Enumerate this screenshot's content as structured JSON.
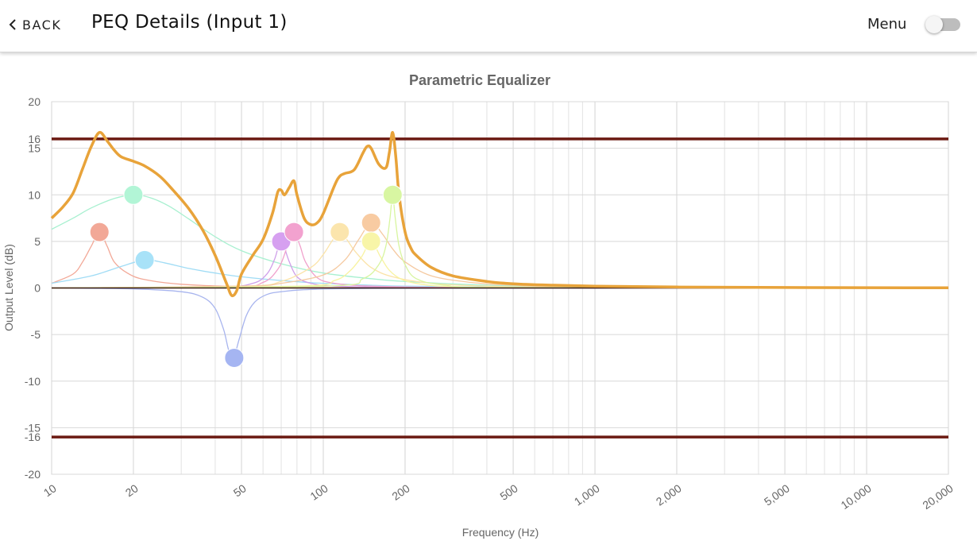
{
  "header": {
    "back_label": "BACK",
    "title": "PEQ Details (Input 1)",
    "menu_label": "Menu",
    "menu_toggle_on": false
  },
  "chart_data": {
    "type": "line",
    "title": "Parametric Equalizer",
    "xlabel": "Frequency (Hz)",
    "ylabel": "Output Level (dB)",
    "xscale": "log",
    "xlim": [
      10,
      20000
    ],
    "ylim": [
      -20,
      20
    ],
    "x_ticks": [
      10,
      20,
      50,
      100,
      200,
      500,
      1000,
      2000,
      5000,
      10000,
      20000
    ],
    "x_tick_labels": [
      "10",
      "20",
      "50",
      "100",
      "200",
      "500",
      "1,000",
      "2,000",
      "5,000",
      "10,000",
      "20,000"
    ],
    "y_ticks": [
      -20,
      -15,
      -10,
      -5,
      0,
      5,
      10,
      15,
      20
    ],
    "y_tick_labels": [
      "-20",
      "-15",
      "-10",
      "-5",
      "0",
      "5",
      "10",
      "15",
      "20"
    ],
    "limit_lines": [
      {
        "value": 16,
        "label": "16",
        "color": "#6b1a12"
      },
      {
        "value": -16,
        "label": "-16",
        "color": "#6b1a12"
      }
    ],
    "zero_line_color": "#3a1d12",
    "grid": true,
    "combined_response": {
      "color": "#e8a33a",
      "x": [
        10,
        11,
        12,
        13,
        14,
        15,
        16,
        17,
        18,
        20,
        22,
        25,
        28,
        32,
        36,
        40,
        44,
        46,
        48,
        50,
        55,
        60,
        65,
        68,
        70,
        72,
        75,
        78,
        80,
        85,
        90,
        95,
        100,
        110,
        115,
        120,
        130,
        140,
        145,
        150,
        160,
        170,
        175,
        180,
        185,
        190,
        200,
        210,
        220,
        250,
        300,
        400,
        500,
        700,
        1000,
        2000,
        5000,
        20000
      ],
      "y": [
        7.5,
        8.7,
        10.2,
        12.8,
        15.2,
        16.7,
        15.8,
        14.8,
        14.1,
        13.6,
        13.1,
        12.0,
        10.5,
        8.5,
        6.2,
        3.5,
        0.5,
        -0.8,
        -0.3,
        1.5,
        3.5,
        5.2,
        8.0,
        10.3,
        10.5,
        10.0,
        10.8,
        11.5,
        10.0,
        7.5,
        6.8,
        7.0,
        8.0,
        11.0,
        12.0,
        12.3,
        12.7,
        14.5,
        15.2,
        15.0,
        13.3,
        12.9,
        14.5,
        16.7,
        14.0,
        10.0,
        6.0,
        4.3,
        3.5,
        2.2,
        1.3,
        0.7,
        0.45,
        0.3,
        0.2,
        0.1,
        0.05,
        0.02
      ]
    },
    "series": [
      {
        "name": "",
        "color": "#f2a897",
        "x": [
          10,
          12,
          13,
          14,
          15,
          16,
          17,
          19,
          22,
          30,
          50,
          100,
          1000,
          20000
        ],
        "y": [
          0.5,
          1.5,
          2.8,
          4.5,
          6.0,
          4.5,
          2.8,
          1.6,
          0.9,
          0.4,
          0.15,
          0.05,
          0,
          0
        ]
      },
      {
        "name": "",
        "color": "#a8f0d0",
        "x": [
          10,
          12,
          14,
          17,
          20,
          23,
          27,
          32,
          40,
          50,
          70,
          100,
          150,
          200,
          400,
          1000,
          20000
        ],
        "y": [
          6.3,
          7.5,
          8.6,
          9.6,
          10.0,
          9.7,
          8.8,
          7.4,
          5.5,
          4.0,
          2.6,
          1.6,
          1.0,
          0.7,
          0.3,
          0.1,
          0
        ]
      },
      {
        "name": "",
        "color": "#a0dcf5",
        "x": [
          10,
          14,
          18,
          22,
          26,
          32,
          40,
          50,
          70,
          100,
          150,
          200,
          400,
          1000,
          20000
        ],
        "y": [
          0.5,
          1.3,
          2.3,
          3.0,
          2.7,
          2.1,
          1.6,
          1.2,
          0.8,
          0.5,
          0.3,
          0.2,
          0.1,
          0,
          0
        ]
      },
      {
        "name": "",
        "color": "#a7b4ee",
        "x": [
          10,
          20,
          30,
          36,
          40,
          43,
          45,
          47,
          49,
          52,
          56,
          62,
          70,
          90,
          150,
          1000,
          20000
        ],
        "y": [
          0,
          -0.1,
          -0.4,
          -1.0,
          -2.2,
          -4.5,
          -6.8,
          -7.2,
          -5.5,
          -3.0,
          -1.5,
          -0.7,
          -0.4,
          -0.15,
          -0.05,
          0,
          0
        ]
      },
      {
        "name": "",
        "color": "#cf9ee9",
        "x": [
          10,
          40,
          55,
          62,
          66,
          68,
          70,
          72,
          75,
          80,
          90,
          110,
          200,
          1000,
          20000
        ],
        "y": [
          0,
          0.1,
          0.5,
          1.5,
          3.0,
          4.2,
          5.0,
          4.3,
          2.8,
          1.2,
          0.5,
          0.2,
          0.05,
          0,
          0
        ]
      },
      {
        "name": "",
        "color": "#f0a0cc",
        "x": [
          10,
          45,
          60,
          68,
          72,
          75,
          78,
          82,
          86,
          95,
          110,
          150,
          300,
          1000,
          20000
        ],
        "y": [
          0,
          0.1,
          0.6,
          2.0,
          3.6,
          5.3,
          6.0,
          4.6,
          2.8,
          1.1,
          0.5,
          0.2,
          0.05,
          0,
          0
        ]
      },
      {
        "name": "",
        "color": "#fbe3a8",
        "x": [
          10,
          50,
          70,
          90,
          100,
          108,
          115,
          122,
          132,
          150,
          180,
          250,
          400,
          1000,
          20000
        ],
        "y": [
          0,
          0.2,
          0.7,
          2.2,
          3.6,
          5.1,
          6.0,
          5.2,
          3.8,
          2.2,
          1.2,
          0.5,
          0.2,
          0.05,
          0
        ]
      },
      {
        "name": "",
        "color": "#f5c9a0",
        "x": [
          10,
          50,
          70,
          100,
          120,
          135,
          150,
          165,
          180,
          200,
          250,
          350,
          500,
          1000,
          20000
        ],
        "y": [
          0,
          0.2,
          0.5,
          1.4,
          3.0,
          5.2,
          7.0,
          5.8,
          4.2,
          2.8,
          1.3,
          0.6,
          0.3,
          0.1,
          0
        ]
      },
      {
        "name": "",
        "color": "#f8f3a0",
        "x": [
          10,
          80,
          110,
          125,
          138,
          150,
          162,
          175,
          195,
          230,
          300,
          600,
          20000
        ],
        "y": [
          0,
          0.2,
          0.8,
          1.8,
          3.3,
          5.0,
          3.4,
          1.9,
          0.9,
          0.4,
          0.15,
          0.05,
          0
        ]
      },
      {
        "name": "",
        "color": "#d8f5a0",
        "x": [
          10,
          100,
          140,
          160,
          170,
          176,
          180,
          184,
          190,
          200,
          220,
          280,
          500,
          20000
        ],
        "y": [
          0,
          0.2,
          1.0,
          2.5,
          4.5,
          7.5,
          10.0,
          7.5,
          4.5,
          2.5,
          1.0,
          0.3,
          0.05,
          0
        ]
      }
    ],
    "handles": [
      {
        "x": 15,
        "y": 6,
        "color": "#f2a897"
      },
      {
        "x": 20,
        "y": 10,
        "color": "#b2f5d6"
      },
      {
        "x": 22,
        "y": 3,
        "color": "#a8e2f8"
      },
      {
        "x": 47,
        "y": -7.5,
        "color": "#a5b5f2"
      },
      {
        "x": 70,
        "y": 5,
        "color": "#d6a0f0"
      },
      {
        "x": 78,
        "y": 6,
        "color": "#f2a2cf"
      },
      {
        "x": 115,
        "y": 6,
        "color": "#fbe5ad"
      },
      {
        "x": 150,
        "y": 7,
        "color": "#f8cba2"
      },
      {
        "x": 150,
        "y": 5,
        "color": "#f8f5a8"
      },
      {
        "x": 180,
        "y": 10,
        "color": "#d8f6a2"
      }
    ]
  }
}
